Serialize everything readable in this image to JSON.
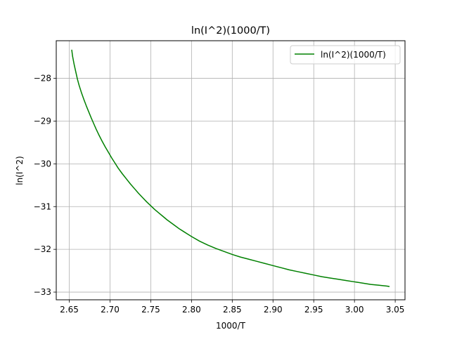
{
  "chart_data": {
    "type": "line",
    "title": "ln(I^2)(1000/T)",
    "xlabel": "1000/T",
    "ylabel": "ln(I^2)",
    "xlim": [
      2.634,
      3.062
    ],
    "ylim": [
      -33.18,
      -27.12
    ],
    "xticks": [
      2.65,
      2.7,
      2.75,
      2.8,
      2.85,
      2.9,
      2.95,
      3.0,
      3.05
    ],
    "xtick_labels": [
      "2.65",
      "2.70",
      "2.75",
      "2.80",
      "2.85",
      "2.90",
      "2.95",
      "3.00",
      "3.05"
    ],
    "yticks": [
      -28,
      -29,
      -30,
      -31,
      -32,
      -33
    ],
    "ytick_labels": [
      "−28",
      "−29",
      "−30",
      "−31",
      "−32",
      "−33"
    ],
    "grid": true,
    "legend_position": "top-right",
    "series": [
      {
        "name": "ln(I^2)(1000/T)",
        "color": "#008000",
        "x": [
          2.653,
          2.654,
          2.656,
          2.658,
          2.66,
          2.662,
          2.665,
          2.668,
          2.671,
          2.674,
          2.677,
          2.68,
          2.683,
          2.686,
          2.69,
          2.694,
          2.698,
          2.702,
          2.706,
          2.71,
          2.715,
          2.72,
          2.725,
          2.73,
          2.735,
          2.74,
          2.745,
          2.75,
          2.755,
          2.76,
          2.765,
          2.77,
          2.775,
          2.78,
          2.785,
          2.79,
          2.795,
          2.8,
          2.81,
          2.82,
          2.83,
          2.84,
          2.85,
          2.86,
          2.87,
          2.88,
          2.89,
          2.9,
          2.91,
          2.92,
          2.93,
          2.94,
          2.95,
          2.96,
          2.97,
          2.98,
          2.99,
          3.0,
          3.01,
          3.02,
          3.03,
          3.04,
          3.043
        ],
        "y": [
          -27.33,
          -27.48,
          -27.68,
          -27.85,
          -28.02,
          -28.16,
          -28.34,
          -28.5,
          -28.65,
          -28.79,
          -28.93,
          -29.06,
          -29.19,
          -29.31,
          -29.46,
          -29.6,
          -29.73,
          -29.86,
          -29.98,
          -30.1,
          -30.23,
          -30.35,
          -30.47,
          -30.58,
          -30.69,
          -30.79,
          -30.89,
          -30.98,
          -31.07,
          -31.15,
          -31.23,
          -31.31,
          -31.38,
          -31.45,
          -31.52,
          -31.58,
          -31.64,
          -31.7,
          -31.81,
          -31.9,
          -31.98,
          -32.05,
          -32.12,
          -32.18,
          -32.23,
          -32.28,
          -32.33,
          -32.38,
          -32.43,
          -32.48,
          -32.52,
          -32.56,
          -32.6,
          -32.64,
          -32.67,
          -32.7,
          -32.73,
          -32.76,
          -32.79,
          -32.82,
          -32.84,
          -32.86,
          -32.87
        ]
      }
    ]
  }
}
